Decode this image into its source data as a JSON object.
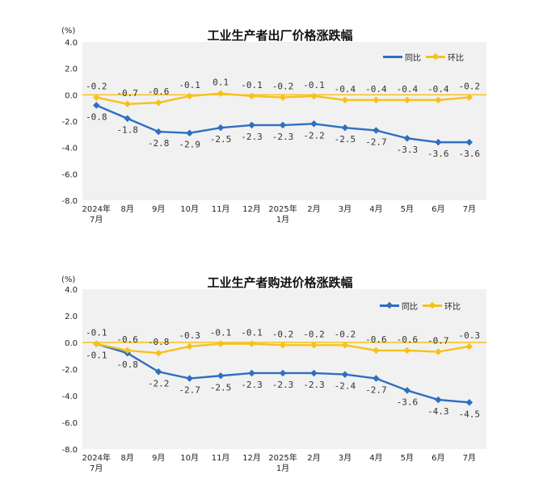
{
  "colors": {
    "yoy": "#2e6fc0",
    "mom": "#f5c21b",
    "plot_bg": "#f1f1f1",
    "zero_line": "#f5c21b"
  },
  "chart_data": [
    {
      "type": "line",
      "title": "工业生产者出厂价格涨跌幅",
      "unit": "(%)",
      "legend_position": "top-right",
      "ylim": [
        -8.0,
        4.0
      ],
      "yticks": [
        "4.0",
        "2.0",
        "0.0",
        "-2.0",
        "-4.0",
        "-6.0",
        "-8.0"
      ],
      "categories": [
        [
          "2024年",
          "7月"
        ],
        [
          "8月"
        ],
        [
          "9月"
        ],
        [
          "10月"
        ],
        [
          "11月"
        ],
        [
          "12月"
        ],
        [
          "2025年",
          "1月"
        ],
        [
          "2月"
        ],
        [
          "3月"
        ],
        [
          "4月"
        ],
        [
          "5月"
        ],
        [
          "6月"
        ],
        [
          "7月"
        ]
      ],
      "series": [
        {
          "name": "同比",
          "key": "yoy",
          "values": [
            -0.8,
            -1.8,
            -2.8,
            -2.9,
            -2.5,
            -2.3,
            -2.3,
            -2.2,
            -2.5,
            -2.7,
            -3.3,
            -3.6,
            -3.6
          ],
          "labels": [
            "-0.8",
            "-1.8",
            "-2.8",
            "-2.9",
            "-2.5",
            "-2.3",
            "-2.3",
            "-2.2",
            "-2.5",
            "-2.7",
            "-3.3",
            "-3.6",
            "-3.6"
          ]
        },
        {
          "name": "环比",
          "key": "mom",
          "values": [
            -0.2,
            -0.7,
            -0.6,
            -0.1,
            0.1,
            -0.1,
            -0.2,
            -0.1,
            -0.4,
            -0.4,
            -0.4,
            -0.4,
            -0.2
          ],
          "labels": [
            "-0.2",
            "-0.7",
            "-0.6",
            "-0.1",
            "0.1",
            "-0.1",
            "-0.2",
            "-0.1",
            "-0.4",
            "-0.4",
            "-0.4",
            "-0.4",
            "-0.2"
          ]
        }
      ]
    },
    {
      "type": "line",
      "title": "工业生产者购进价格涨跌幅",
      "unit": "(%)",
      "legend_position": "top-right",
      "ylim": [
        -8.0,
        4.0
      ],
      "yticks": [
        "4.0",
        "2.0",
        "0.0",
        "-2.0",
        "-4.0",
        "-6.0",
        "-8.0"
      ],
      "categories": [
        [
          "2024年",
          "7月"
        ],
        [
          "8月"
        ],
        [
          "9月"
        ],
        [
          "10月"
        ],
        [
          "11月"
        ],
        [
          "12月"
        ],
        [
          "2025年",
          "1月"
        ],
        [
          "2月"
        ],
        [
          "3月"
        ],
        [
          "4月"
        ],
        [
          "5月"
        ],
        [
          "6月"
        ],
        [
          "7月"
        ]
      ],
      "series": [
        {
          "name": "同比",
          "key": "yoy",
          "values": [
            -0.1,
            -0.8,
            -2.2,
            -2.7,
            -2.5,
            -2.3,
            -2.3,
            -2.3,
            -2.4,
            -2.7,
            -3.6,
            -4.3,
            -4.5
          ],
          "labels": [
            "-0.1",
            "-0.8",
            "-2.2",
            "-2.7",
            "-2.5",
            "-2.3",
            "-2.3",
            "-2.3",
            "-2.4",
            "-2.7",
            "-3.6",
            "-4.3",
            "-4.5"
          ]
        },
        {
          "name": "环比",
          "key": "mom",
          "values": [
            -0.1,
            -0.6,
            -0.8,
            -0.3,
            -0.1,
            -0.1,
            -0.2,
            -0.2,
            -0.2,
            -0.6,
            -0.6,
            -0.7,
            -0.3
          ],
          "labels": [
            "-0.1",
            "-0.6",
            "-0.8",
            "-0.3",
            "-0.1",
            "-0.1",
            "-0.2",
            "-0.2",
            "-0.2",
            "-0.6",
            "-0.6",
            "-0.7",
            "-0.3"
          ]
        }
      ]
    }
  ]
}
